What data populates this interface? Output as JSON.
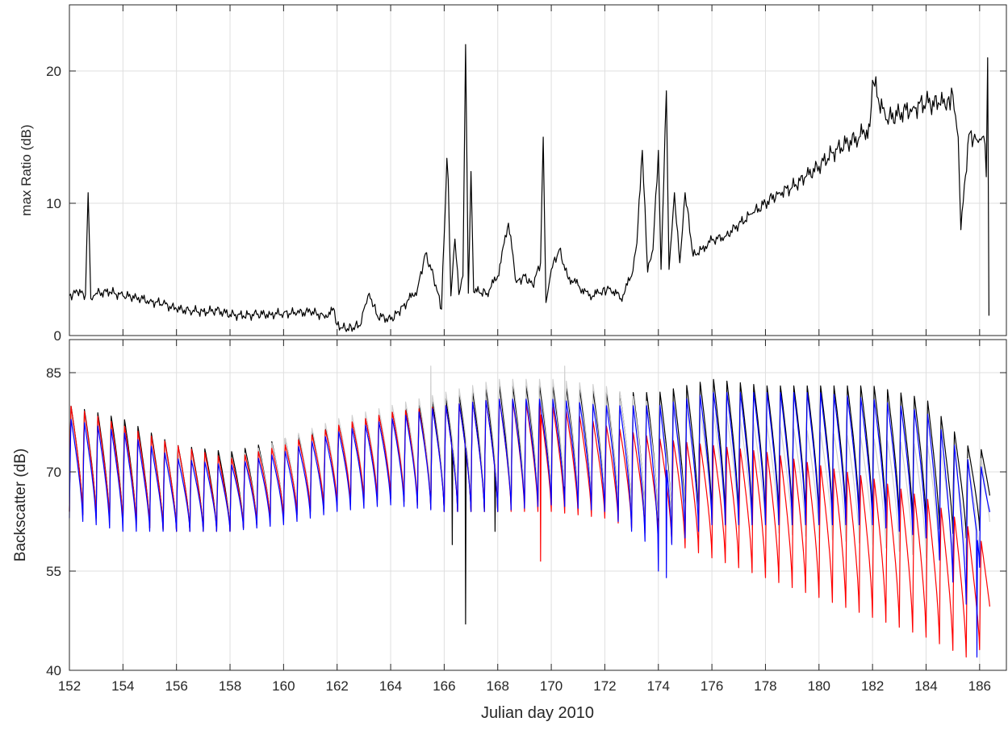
{
  "chart_data": [
    {
      "type": "line",
      "title": "",
      "xlabel": "",
      "ylabel": "max Ratio (dB)",
      "xlim": [
        152,
        187
      ],
      "ylim": [
        0,
        25
      ],
      "xticks": [
        152,
        154,
        156,
        158,
        160,
        162,
        164,
        166,
        168,
        170,
        172,
        174,
        176,
        178,
        180,
        182,
        184,
        186
      ],
      "yticks": [
        0,
        10,
        20
      ],
      "ytick_labels": [
        "0",
        "10",
        "20"
      ],
      "grid": true,
      "legend": "none",
      "series": [
        {
          "color": "#000000",
          "x": [
            152.0,
            152.3,
            152.6,
            152.7,
            152.8,
            153.0,
            153.5,
            154.0,
            154.5,
            155.0,
            155.5,
            156.0,
            156.5,
            157.0,
            157.5,
            158.0,
            158.5,
            159.0,
            159.5,
            160.0,
            160.5,
            161.0,
            161.5,
            161.9,
            162.0,
            162.3,
            162.6,
            162.9,
            163.0,
            163.2,
            163.5,
            164.0,
            164.3,
            164.6,
            165.0,
            165.3,
            165.6,
            165.9,
            166.1,
            166.15,
            166.25,
            166.4,
            166.55,
            166.7,
            166.8,
            166.9,
            167.0,
            167.1,
            167.3,
            167.6,
            168.0,
            168.4,
            168.7,
            169.0,
            169.3,
            169.6,
            169.7,
            169.8,
            170.0,
            170.3,
            170.6,
            171.0,
            171.4,
            171.8,
            172.2,
            172.6,
            173.0,
            173.2,
            173.4,
            173.6,
            173.8,
            174.0,
            174.1,
            174.2,
            174.3,
            174.4,
            174.6,
            174.8,
            175.0,
            175.3,
            175.6,
            176.0,
            176.5,
            177.0,
            177.5,
            178.0,
            178.5,
            179.0,
            179.5,
            180.0,
            180.5,
            181.0,
            181.5,
            181.9,
            182.0,
            182.5,
            183.0,
            183.5,
            184.0,
            184.5,
            184.8,
            185.0,
            185.2,
            185.3,
            185.6,
            185.9,
            186.1,
            186.2,
            186.25,
            186.3,
            186.35
          ],
          "y": [
            3.0,
            3.3,
            3.1,
            10.8,
            2.8,
            3.2,
            3.3,
            3.0,
            2.9,
            2.6,
            2.4,
            2.0,
            1.9,
            1.8,
            1.9,
            1.6,
            1.5,
            1.6,
            1.6,
            1.7,
            1.7,
            1.8,
            1.5,
            1.9,
            0.8,
            0.5,
            0.6,
            0.9,
            2.0,
            3.2,
            1.5,
            1.2,
            1.8,
            2.5,
            3.5,
            6.2,
            4.5,
            2.0,
            13.4,
            11.8,
            3.0,
            7.3,
            3.1,
            4.5,
            22.0,
            3.2,
            12.4,
            3.3,
            3.3,
            3.2,
            4.5,
            8.5,
            4.0,
            4.5,
            3.8,
            5.5,
            15.0,
            2.5,
            5.0,
            6.5,
            4.5,
            3.8,
            3.0,
            3.2,
            3.6,
            2.8,
            4.5,
            7.0,
            14.0,
            4.8,
            6.5,
            14.0,
            5.0,
            11.5,
            18.5,
            5.0,
            10.8,
            5.5,
            10.8,
            6.0,
            6.5,
            7.2,
            7.5,
            8.4,
            9.2,
            10.0,
            10.8,
            11.2,
            12.0,
            12.8,
            13.8,
            14.5,
            15.0,
            15.8,
            19.3,
            16.3,
            16.8,
            17.2,
            17.6,
            17.5,
            17.8,
            18.2,
            15.0,
            8.0,
            15.2,
            14.8,
            15.0,
            14.5,
            12.0,
            21.0,
            1.5
          ]
        }
      ]
    },
    {
      "type": "line",
      "title": "",
      "xlabel": "Julian day 2010",
      "ylabel": "Backscatter (dB)",
      "xlim": [
        152,
        187
      ],
      "ylim": [
        40,
        90
      ],
      "xticks": [
        152,
        154,
        156,
        158,
        160,
        162,
        164,
        166,
        168,
        170,
        172,
        174,
        176,
        178,
        180,
        182,
        184,
        186
      ],
      "xtick_labels": [
        "152",
        "154",
        "156",
        "158",
        "160",
        "162",
        "164",
        "166",
        "168",
        "170",
        "172",
        "174",
        "176",
        "178",
        "180",
        "182",
        "184",
        "186"
      ],
      "yticks": [
        40,
        55,
        70,
        85
      ],
      "ytick_labels": [
        "40",
        "55",
        "70",
        "85"
      ],
      "grid": true,
      "legend": "none",
      "x_range": [
        152,
        186.4
      ],
      "cycle_period_days": 0.5,
      "series": [
        {
          "color": "#000000",
          "envelope": {
            "x": [
              152,
              154,
              156,
              158,
              160,
              162,
              164,
              166,
              168,
              170,
              172,
              174,
              176,
              178,
              180,
              182,
              184,
              185.5,
              186.4
            ],
            "high": [
              80,
              78,
              74,
              73,
              75,
              77,
              79,
              81,
              83,
              83,
              82,
              82,
              84,
              83,
              83,
              83,
              81,
              74,
              73
            ],
            "low": [
              64,
              62,
              61,
              61,
              63,
              65,
              66,
              64,
              64,
              66,
              65,
              62,
              63,
              63,
              63,
              63,
              62,
              60,
              62
            ]
          },
          "spikes": [
            [
              166.8,
              47
            ],
            [
              166.3,
              59
            ],
            [
              167.9,
              61
            ]
          ]
        },
        {
          "color": "#d0d0d0",
          "envelope": {
            "x": [
              152,
              154,
              156,
              158,
              160,
              162,
              164,
              166,
              168,
              170,
              172,
              174,
              176,
              178,
              180,
              182,
              184,
              185.5,
              186.4
            ],
            "high": [
              79,
              77,
              73,
              72,
              75,
              78,
              80,
              82,
              84,
              84,
              83,
              80,
              79,
              77,
              76,
              75,
              74,
              72,
              72
            ],
            "low": [
              64,
              62,
              61,
              61,
              63,
              65,
              66,
              65,
              65,
              66,
              65,
              63,
              62,
              61,
              60,
              59,
              57,
              56,
              56
            ]
          },
          "spikes": [
            [
              165.5,
              86
            ],
            [
              170.5,
              86
            ]
          ]
        },
        {
          "color": "#ff0000",
          "envelope": {
            "x": [
              152,
              154,
              156,
              158,
              160,
              162,
              164,
              166,
              168,
              170,
              172,
              174,
              176,
              178,
              180,
              182,
              184,
              185.5,
              186.4
            ],
            "high": [
              80,
              77,
              74,
              72,
              74,
              77,
              79,
              80,
              81,
              80,
              77,
              75,
              74,
              73,
              71,
              69,
              66,
              62,
              58
            ],
            "low": [
              64,
              62,
              61,
              61,
              63,
              65,
              66,
              64,
              64,
              64,
              63,
              60,
              57,
              54,
              51,
              48,
              45,
              42,
              44
            ]
          },
          "spikes": [
            [
              169.6,
              56.5
            ]
          ]
        },
        {
          "color": "#0000ff",
          "envelope": {
            "x": [
              152,
              154,
              156,
              158,
              160,
              162,
              164,
              166,
              168,
              170,
              172,
              174,
              176,
              178,
              180,
              182,
              184,
              185.5,
              186.4
            ],
            "high": [
              78,
              76,
              72,
              71,
              73,
              76,
              78,
              80,
              81,
              81,
              80,
              80,
              82,
              82,
              82,
              81,
              79,
              72,
              70
            ],
            "low": [
              63,
              61,
              61,
              61,
              62,
              64,
              65,
              64,
              64,
              65,
              64,
              58,
              62,
              62,
              62,
              62,
              60,
              50,
              60
            ]
          },
          "spikes": [
            [
              174.0,
              55
            ],
            [
              174.3,
              54
            ],
            [
              185.9,
              42
            ]
          ]
        }
      ]
    }
  ]
}
